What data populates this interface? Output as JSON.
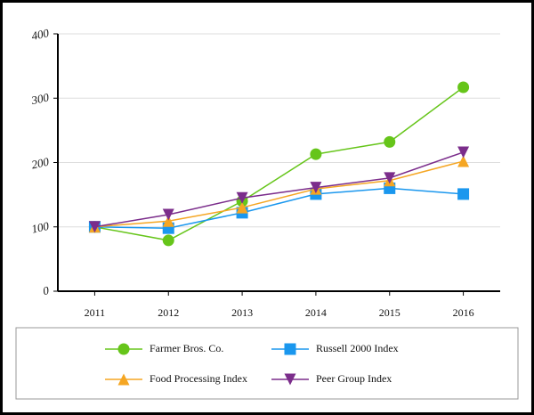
{
  "chart_data": {
    "type": "line",
    "categories": [
      "2011",
      "2012",
      "2013",
      "2014",
      "2015",
      "2016"
    ],
    "series": [
      {
        "name": "Farmer Bros. Co.",
        "color": "#66c51a",
        "marker": "circle",
        "values": [
          100,
          79,
          140,
          213,
          232,
          317
        ]
      },
      {
        "name": "Russell 2000 Index",
        "color": "#1a97ee",
        "marker": "square",
        "values": [
          100,
          98,
          122,
          151,
          160,
          151
        ]
      },
      {
        "name": "Food Processing Index",
        "color": "#f5a623",
        "marker": "triangle-up",
        "values": [
          100,
          109,
          130,
          159,
          172,
          202
        ]
      },
      {
        "name": "Peer Group Index",
        "color": "#7b2d8b",
        "marker": "triangle-down",
        "values": [
          100,
          119,
          145,
          161,
          176,
          216
        ]
      }
    ],
    "ylim": [
      0,
      400
    ],
    "yticks": [
      0,
      100,
      200,
      300,
      400
    ],
    "grid": true,
    "legend": "bottom"
  }
}
